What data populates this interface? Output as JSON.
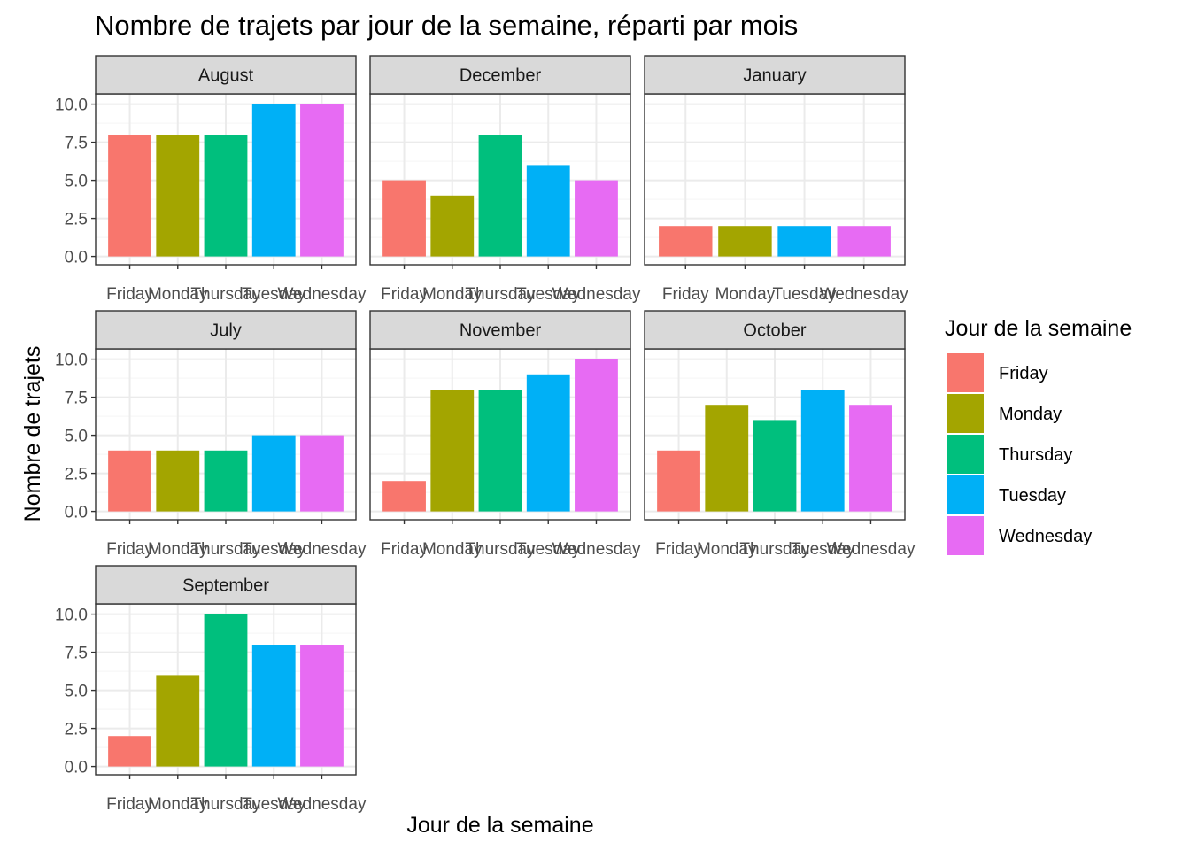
{
  "chart_data": {
    "type": "bar",
    "title": "Nombre de trajets par jour de la semaine, réparti par mois",
    "xlabel": "Jour de la semaine",
    "ylabel": "Nombre de trajets",
    "ylim": [
      0,
      10
    ],
    "yticks": [
      "0.0",
      "2.5",
      "5.0",
      "7.5",
      "10.0"
    ],
    "grid": true,
    "legend": {
      "title": "Jour de la semaine",
      "placement": "right",
      "entries": [
        {
          "name": "Friday",
          "color": "#F8766D"
        },
        {
          "name": "Monday",
          "color": "#A3A500"
        },
        {
          "name": "Thursday",
          "color": "#00BF7D"
        },
        {
          "name": "Tuesday",
          "color": "#00B0F6"
        },
        {
          "name": "Wednesday",
          "color": "#E76BF3"
        }
      ]
    },
    "panels": [
      {
        "month": "August",
        "categories": [
          "Friday",
          "Monday",
          "Thursday",
          "Tuesday",
          "Wednesday"
        ],
        "values": [
          8,
          8,
          8,
          10,
          10
        ]
      },
      {
        "month": "December",
        "categories": [
          "Friday",
          "Monday",
          "Thursday",
          "Tuesday",
          "Wednesday"
        ],
        "values": [
          5,
          4,
          8,
          6,
          5
        ]
      },
      {
        "month": "January",
        "categories": [
          "Friday",
          "Monday",
          "Tuesday",
          "Wednesday"
        ],
        "values": [
          2,
          2,
          2,
          2
        ]
      },
      {
        "month": "July",
        "categories": [
          "Friday",
          "Monday",
          "Thursday",
          "Tuesday",
          "Wednesday"
        ],
        "values": [
          4,
          4,
          4,
          5,
          5
        ]
      },
      {
        "month": "November",
        "categories": [
          "Friday",
          "Monday",
          "Thursday",
          "Tuesday",
          "Wednesday"
        ],
        "values": [
          2,
          8,
          8,
          9,
          10
        ]
      },
      {
        "month": "October",
        "categories": [
          "Friday",
          "Monday",
          "Thursday",
          "Tuesday",
          "Wednesday"
        ],
        "values": [
          4,
          7,
          6,
          8,
          7
        ]
      },
      {
        "month": "September",
        "categories": [
          "Friday",
          "Monday",
          "Thursday",
          "Tuesday",
          "Wednesday"
        ],
        "values": [
          2,
          6,
          10,
          8,
          8
        ]
      }
    ]
  },
  "colors": {
    "strip_fill": "#d9d9d9",
    "panel_border": "#333333",
    "grid_major": "#ebebeb",
    "grid_minor": "#f5f5f5"
  }
}
